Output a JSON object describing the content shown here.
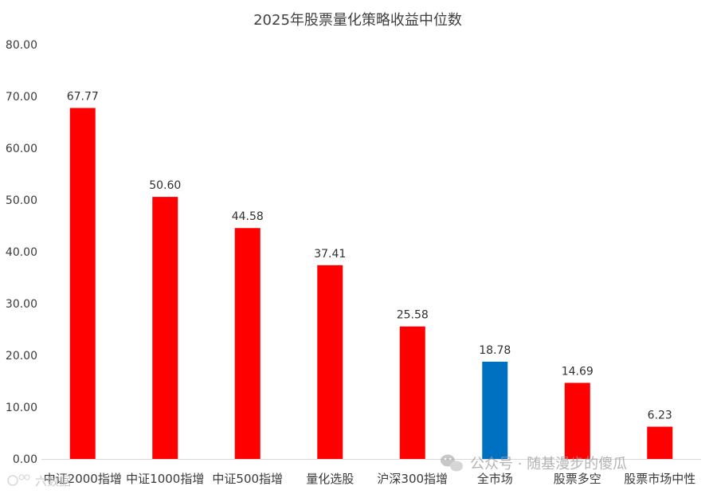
{
  "chart_data": {
    "type": "bar",
    "title": "2025年股票量化策略收益中位数",
    "categories": [
      "中证2000指增",
      "中证1000指增",
      "中证500指增",
      "量化选股",
      "沪深300指增",
      "全市场",
      "股票多空",
      "股票市场中性"
    ],
    "values": [
      67.77,
      50.6,
      44.58,
      37.41,
      25.58,
      18.78,
      14.69,
      6.23
    ],
    "data_labels": [
      "67.77",
      "50.60",
      "44.58",
      "37.41",
      "25.58",
      "18.78",
      "14.69",
      "6.23"
    ],
    "bar_colors": [
      "#ff0000",
      "#ff0000",
      "#ff0000",
      "#ff0000",
      "#ff0000",
      "#0070c0",
      "#ff0000",
      "#ff0000"
    ],
    "ylim": [
      0,
      80
    ],
    "yticks": [
      0,
      10,
      20,
      30,
      40,
      50,
      60,
      70,
      80
    ],
    "ytick_labels": [
      "0.00",
      "10.00",
      "20.00",
      "30.00",
      "40.00",
      "50.00",
      "60.00",
      "70.00",
      "80.00"
    ],
    "xlabel": "",
    "ylabel": "",
    "grid": false,
    "legend": "none"
  },
  "watermarks": {
    "wechat": "公众号 · 随基漫步的傻瓜",
    "corner": "六数据"
  },
  "icons": {
    "wechat": "wechat-icon",
    "corner": "corner-logo-icon"
  }
}
